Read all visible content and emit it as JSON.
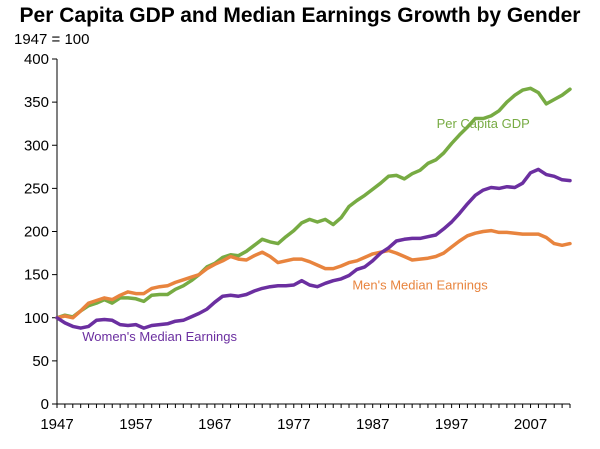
{
  "chart_data": {
    "type": "line",
    "title": "Per Capita GDP and Median Earnings Growth by Gender",
    "subtitle": "1947 = 100",
    "xlabel": "",
    "ylabel": "",
    "xlim": [
      1947,
      2012
    ],
    "ylim": [
      0,
      400
    ],
    "x_ticks": [
      "1947",
      "1957",
      "1967",
      "1977",
      "1987",
      "1997",
      "2007"
    ],
    "y_ticks": [
      "0",
      "50",
      "100",
      "150",
      "200",
      "250",
      "300",
      "350",
      "400"
    ],
    "grid": false,
    "years": [
      1947,
      1948,
      1949,
      1950,
      1951,
      1952,
      1953,
      1954,
      1955,
      1956,
      1957,
      1958,
      1959,
      1960,
      1961,
      1962,
      1963,
      1964,
      1965,
      1966,
      1967,
      1968,
      1969,
      1970,
      1971,
      1972,
      1973,
      1974,
      1975,
      1976,
      1977,
      1978,
      1979,
      1980,
      1981,
      1982,
      1983,
      1984,
      1985,
      1986,
      1987,
      1988,
      1989,
      1990,
      1991,
      1992,
      1993,
      1994,
      1995,
      1996,
      1997,
      1998,
      1999,
      2000,
      2001,
      2002,
      2003,
      2004,
      2005,
      2006,
      2007,
      2008,
      2009,
      2010,
      2011,
      2012
    ],
    "series": [
      {
        "name": "Per Capita GDP",
        "color": "#77ab43",
        "label_anchor_year": 2001,
        "label_value": 320,
        "values": [
          100,
          103,
          101,
          108,
          114,
          117,
          121,
          117,
          123,
          123,
          122,
          119,
          126,
          127,
          127,
          133,
          137,
          143,
          150,
          159,
          163,
          170,
          173,
          172,
          177,
          184,
          191,
          188,
          186,
          194,
          201,
          210,
          214,
          211,
          214,
          208,
          216,
          229,
          236,
          242,
          249,
          256,
          264,
          265,
          261,
          267,
          271,
          279,
          283,
          291,
          302,
          312,
          321,
          331,
          331,
          334,
          340,
          350,
          358,
          364,
          366,
          361,
          348,
          353,
          358,
          365
        ]
      },
      {
        "name": "Men's Median Earnings",
        "color": "#e8843e",
        "label_anchor_year": 1993,
        "label_value": 133,
        "values": [
          100,
          102,
          100,
          108,
          117,
          120,
          123,
          121,
          126,
          130,
          128,
          128,
          134,
          136,
          137,
          141,
          144,
          147,
          150,
          157,
          162,
          166,
          171,
          168,
          167,
          172,
          176,
          171,
          164,
          166,
          168,
          168,
          165,
          161,
          157,
          157,
          160,
          164,
          166,
          170,
          174,
          176,
          178,
          175,
          171,
          167,
          168,
          169,
          171,
          175,
          182,
          189,
          195,
          198,
          200,
          201,
          199,
          199,
          198,
          197,
          197,
          197,
          193,
          186,
          184,
          186
        ]
      },
      {
        "name": "Women's Median Earnings",
        "color": "#6b2fa0",
        "label_anchor_year": 1960,
        "label_value": 73,
        "values": [
          100,
          94,
          90,
          88,
          90,
          97,
          98,
          97,
          92,
          91,
          92,
          88,
          91,
          92,
          93,
          96,
          97,
          101,
          105,
          110,
          118,
          125,
          126,
          125,
          127,
          131,
          134,
          136,
          137,
          137,
          138,
          143,
          138,
          136,
          140,
          143,
          145,
          149,
          156,
          159,
          166,
          175,
          181,
          189,
          191,
          192,
          192,
          194,
          196,
          203,
          211,
          221,
          232,
          242,
          248,
          251,
          250,
          252,
          251,
          256,
          268,
          272,
          266,
          264,
          260,
          259
        ]
      }
    ]
  }
}
